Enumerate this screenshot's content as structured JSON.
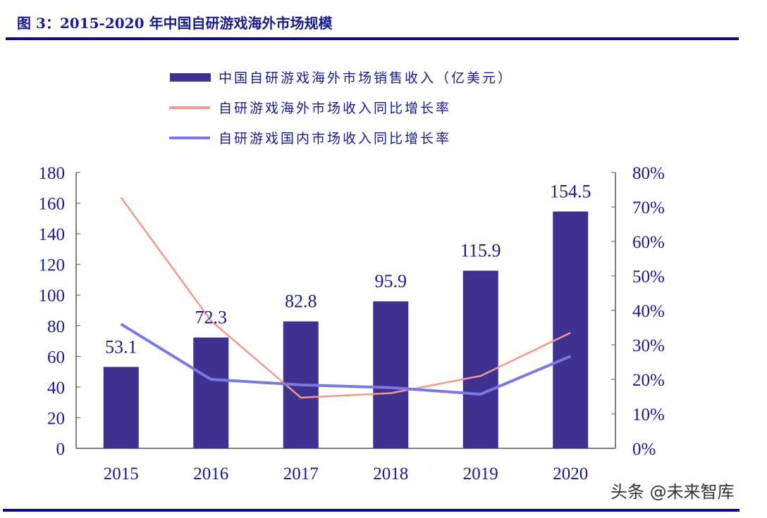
{
  "chart_data": {
    "type": "bar+line",
    "title": "图 3：2015-2020 年中国自研游戏海外市场规模",
    "categories": [
      "2015",
      "2016",
      "2017",
      "2018",
      "2019",
      "2020"
    ],
    "series": [
      {
        "name": "中国自研游戏海外市场销售收入（亿美元）",
        "type": "bar",
        "axis": "left",
        "values": [
          53.1,
          72.3,
          82.8,
          95.9,
          115.9,
          154.5
        ],
        "color": "#3f3190"
      },
      {
        "name": "自研游戏海外市场收入同比增长率",
        "type": "line",
        "axis": "right",
        "values": [
          72.7,
          37.0,
          14.7,
          16.0,
          21.0,
          33.5
        ],
        "color": "#f4978e"
      },
      {
        "name": "自研游戏国内市场收入同比增长率",
        "type": "line",
        "axis": "right",
        "values": [
          36.0,
          20.0,
          18.4,
          17.6,
          15.7,
          26.7
        ],
        "color": "#7b78e0"
      }
    ],
    "data_labels": [
      "53.1",
      "72.3",
      "82.8",
      "95.9",
      "115.9",
      "154.5"
    ],
    "y_left": {
      "ylim": [
        0,
        180
      ],
      "ticks": [
        "0",
        "20",
        "40",
        "60",
        "80",
        "100",
        "120",
        "140",
        "160",
        "180"
      ]
    },
    "y_right": {
      "ylim": [
        0,
        80
      ],
      "unit": "%",
      "ticks": [
        "0%",
        "10%",
        "20%",
        "30%",
        "40%",
        "50%",
        "60%",
        "70%",
        "80%"
      ]
    },
    "legend_placement": "top-center",
    "grid": false
  },
  "watermark": "头条 @未来智库",
  "colors": {
    "rule": "#0a0a8a",
    "text": "#1a1a8c"
  }
}
